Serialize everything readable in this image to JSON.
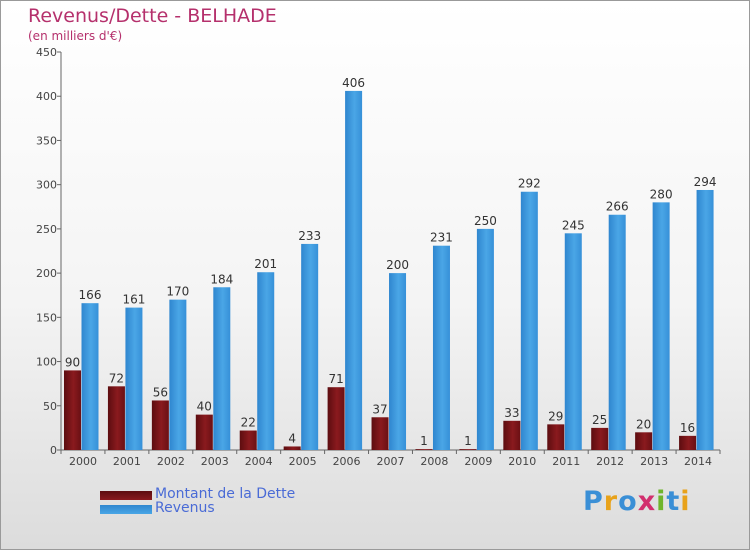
{
  "chart_data": {
    "type": "bar",
    "title": "Revenus/Dette - BELHADE",
    "subtitle": "(en milliers d'€)",
    "categories": [
      "2000",
      "2001",
      "2002",
      "2003",
      "2004",
      "2005",
      "2006",
      "2007",
      "2008",
      "2009",
      "2010",
      "2011",
      "2012",
      "2013",
      "2014"
    ],
    "series": [
      {
        "name": "Montant de la Dette",
        "color": "#7a1418",
        "values": [
          90,
          72,
          56,
          40,
          22,
          4,
          71,
          37,
          1,
          1,
          33,
          29,
          25,
          20,
          16
        ]
      },
      {
        "name": "Revenus",
        "color": "#3a96dc",
        "values": [
          166,
          161,
          170,
          184,
          201,
          233,
          406,
          200,
          231,
          250,
          292,
          245,
          266,
          280,
          294
        ]
      }
    ],
    "ylim": [
      0,
      450
    ],
    "yticks": [
      0,
      50,
      100,
      150,
      200,
      250,
      300,
      350,
      400,
      450
    ],
    "grid": false,
    "legend": "bottom-left"
  },
  "logo": {
    "text": "Proxiti",
    "letters": [
      {
        "ch": "P",
        "color": "#3a8fd6"
      },
      {
        "ch": "r",
        "color": "#e8a21a"
      },
      {
        "ch": "o",
        "color": "#3a8fd6"
      },
      {
        "ch": "x",
        "color": "#d22f6e"
      },
      {
        "ch": "i",
        "color": "#6fb52c"
      },
      {
        "ch": "t",
        "color": "#3a8fd6"
      },
      {
        "ch": "i",
        "color": "#e8a21a"
      }
    ]
  }
}
